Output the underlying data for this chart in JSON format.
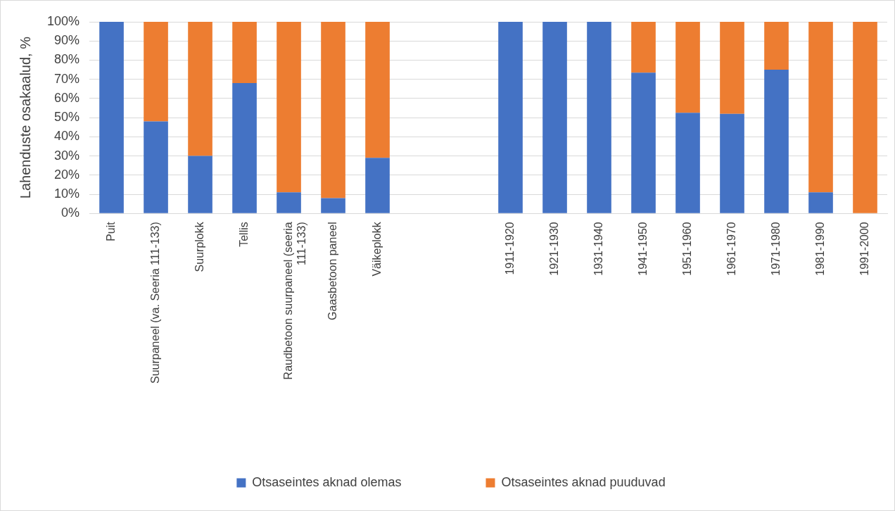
{
  "chart_data": {
    "type": "bar",
    "stacked": true,
    "ylabel": "Lahenduste osakaalud, %",
    "categories": [
      "Puit",
      "Suurpaneel (va. Seeria 111-133)",
      "Suurplokk",
      "Tellis",
      "Raudbetoon suurpaneel (seeria 111-133)",
      "Gaasbetoon paneel",
      "Väikeplokk",
      null,
      null,
      "1911-1920",
      "1921-1930",
      "1931-1940",
      "1941-1950",
      "1951-1960",
      "1961-1970",
      "1971-1980",
      "1981-1990",
      "1991-2000"
    ],
    "series": [
      {
        "name": "Otsaseintes aknad olemas",
        "color": "#4472c4",
        "values": [
          100,
          48,
          30,
          68,
          11,
          8,
          29,
          null,
          null,
          100,
          100,
          100,
          73.5,
          52.5,
          52,
          75,
          11,
          0
        ]
      },
      {
        "name": "Otsaseintes aknad puuduvad",
        "color": "#ed7d31",
        "values": [
          0,
          52,
          70,
          32,
          89,
          92,
          71,
          null,
          null,
          0,
          0,
          0,
          26.5,
          47.5,
          48,
          25,
          89,
          100
        ]
      }
    ],
    "ylim": [
      0,
      100
    ],
    "yticks": [
      {
        "value": 0,
        "label": "0%"
      },
      {
        "value": 10,
        "label": "10%"
      },
      {
        "value": 20,
        "label": "20%"
      },
      {
        "value": 30,
        "label": "30%"
      },
      {
        "value": 40,
        "label": "40%"
      },
      {
        "value": 50,
        "label": "50%"
      },
      {
        "value": 60,
        "label": "60%"
      },
      {
        "value": 70,
        "label": "70%"
      },
      {
        "value": 80,
        "label": "80%"
      },
      {
        "value": 90,
        "label": "90%"
      },
      {
        "value": 100,
        "label": "100%"
      }
    ],
    "grid": "y",
    "legend": "bottom"
  }
}
